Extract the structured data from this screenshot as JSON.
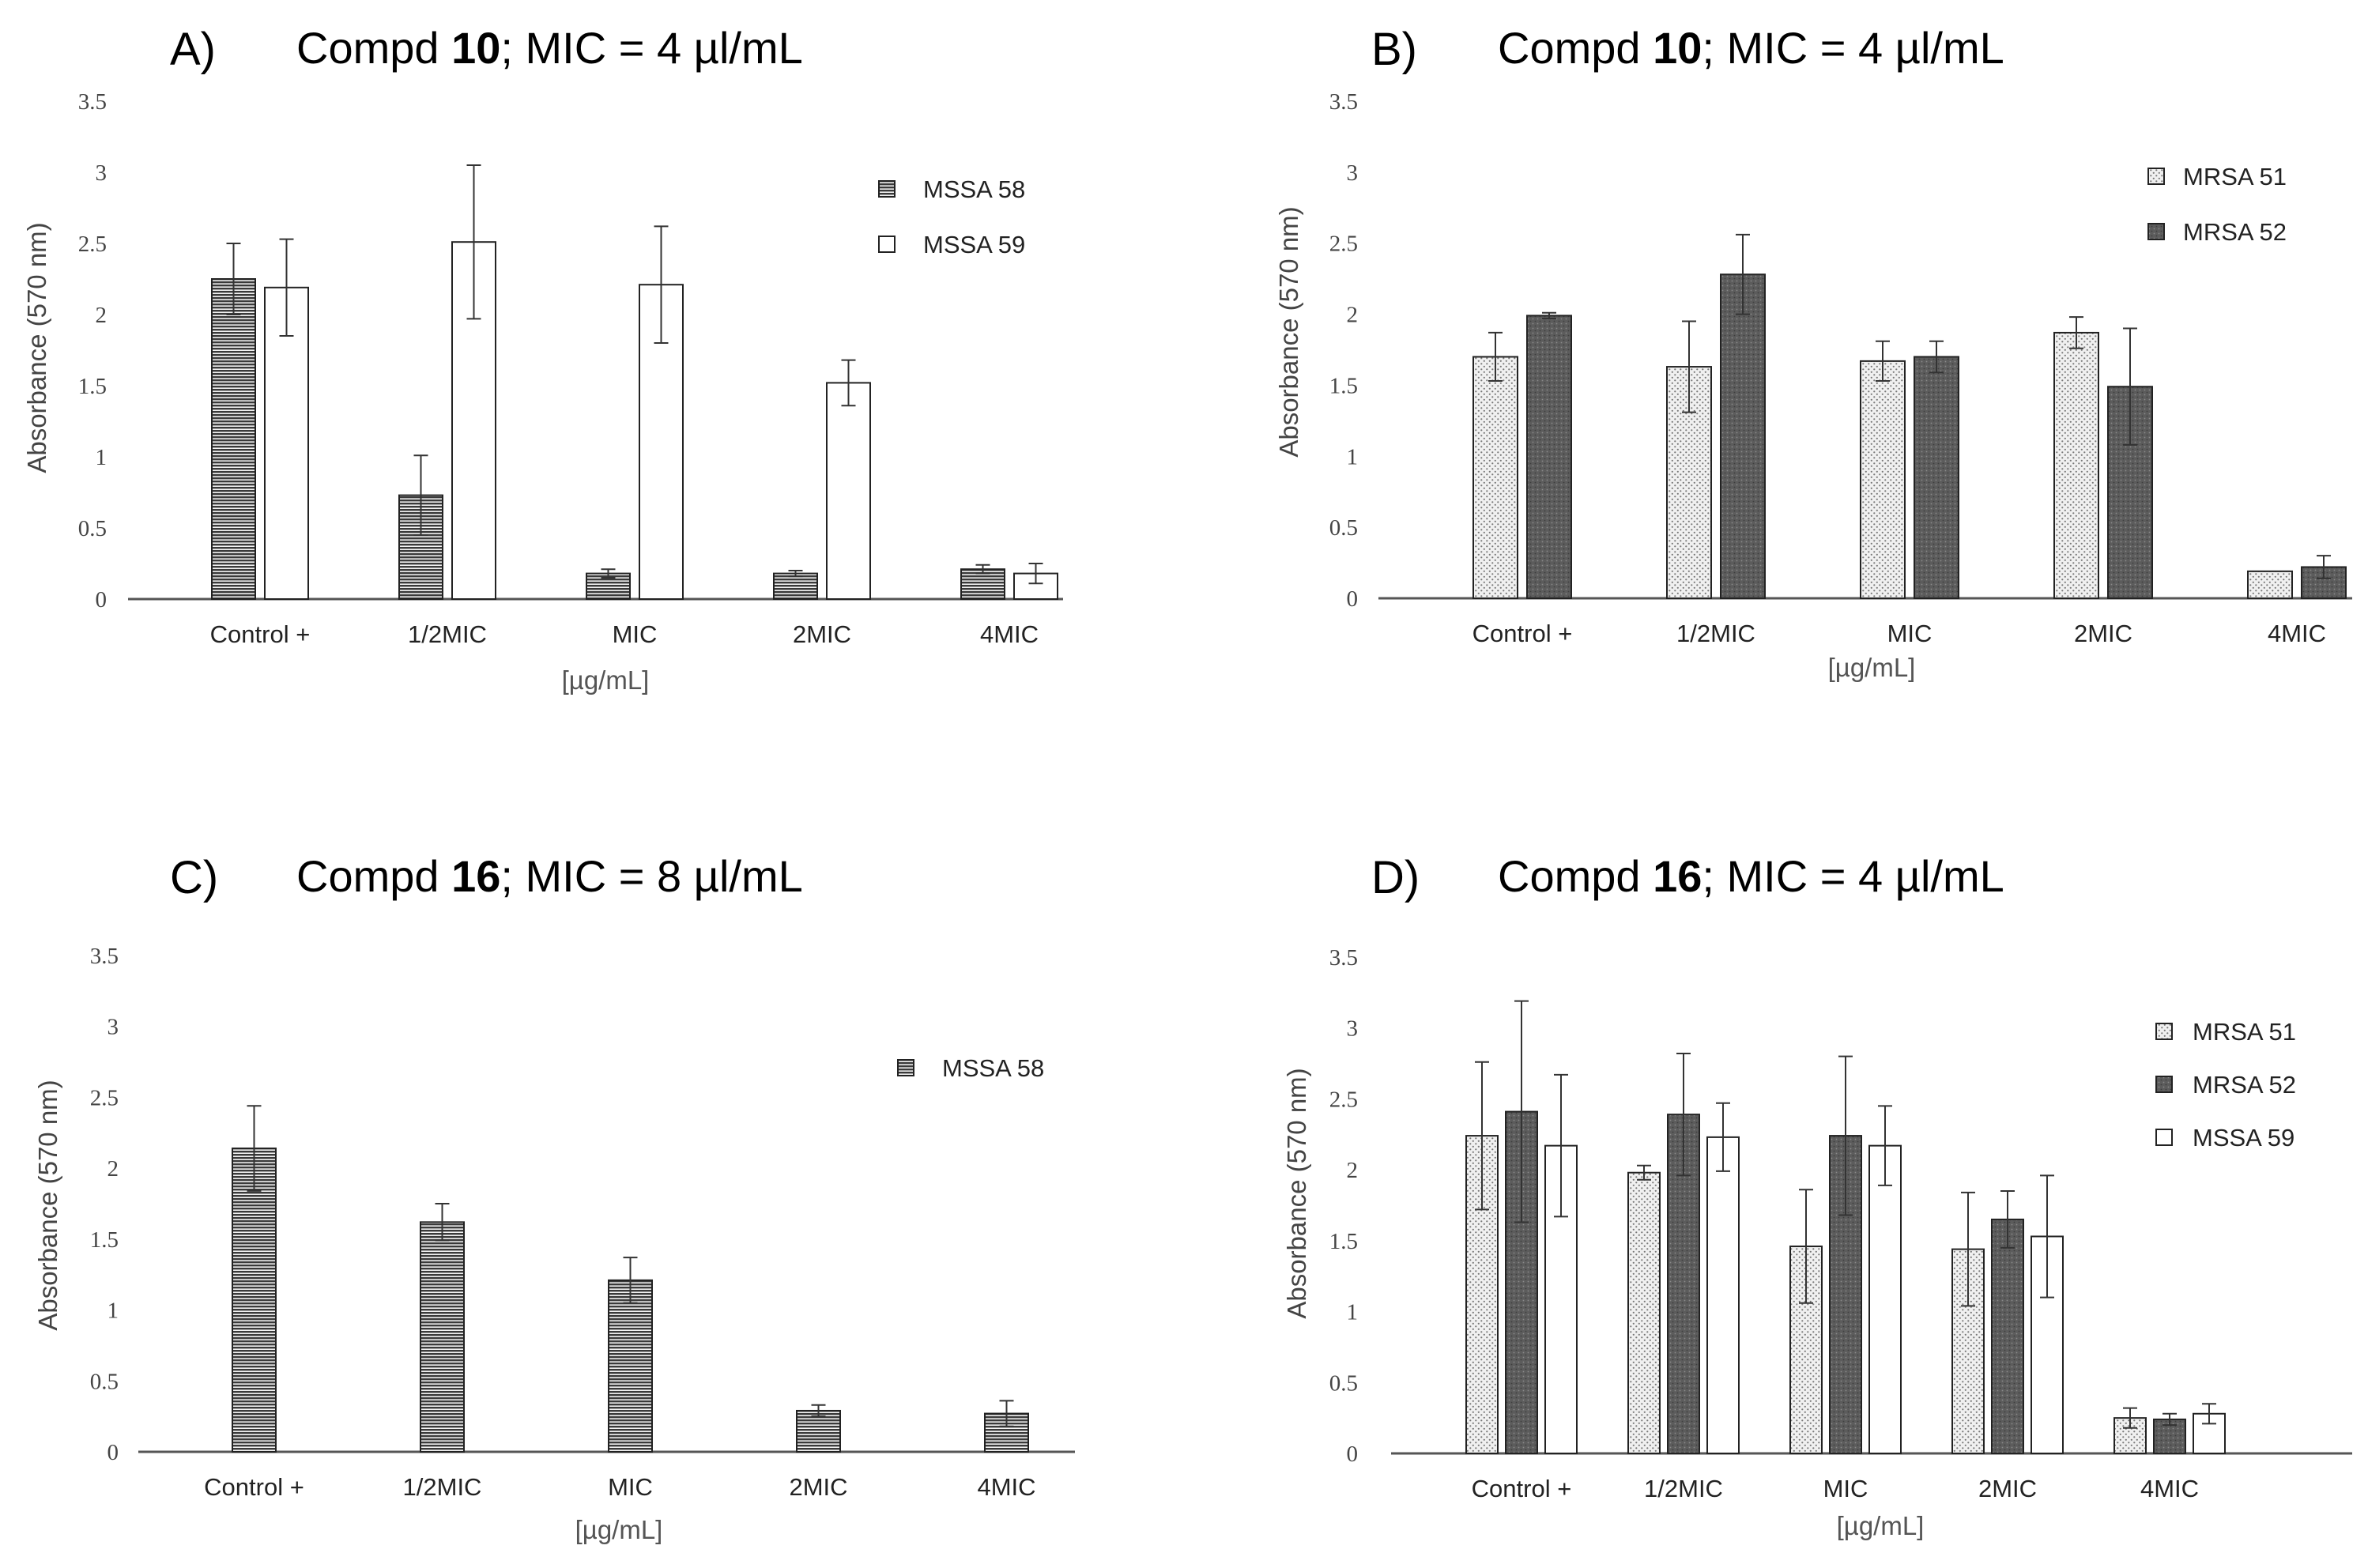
{
  "panels": [
    {
      "letter": "A)",
      "title_prefix": "Compd ",
      "title_compound": "10",
      "title_suffix": ";  MIC = 4 µl/mL",
      "ylabel": "Absorbance (570 nm)",
      "xunit": "[µg/mL]"
    },
    {
      "letter": "B)",
      "title_prefix": "Compd ",
      "title_compound": "10",
      "title_suffix": ";  MIC = 4 µl/mL",
      "ylabel": "Absorbance (570 nm)",
      "xunit": "[µg/mL]"
    },
    {
      "letter": "C)",
      "title_prefix": "Compd ",
      "title_compound": "16",
      "title_suffix": ";  MIC = 8 µl/mL",
      "ylabel": "Absorbance  (570 nm)",
      "xunit": "[µg/mL]"
    },
    {
      "letter": "D)",
      "title_prefix": "Compd ",
      "title_compound": "16",
      "title_suffix": ";  MIC = 4 µl/mL",
      "ylabel": "Absorbance  (570 nm)",
      "xunit": "[µg/mL]"
    }
  ],
  "chart_data": [
    {
      "type": "bar",
      "title": "Compd 10;  MIC = 4 µl/mL",
      "ylabel": "Absorbance (570 nm)",
      "xlabel": "[µg/mL]",
      "ylim": [
        0,
        3.5
      ],
      "yticks": [
        "0",
        "0.5",
        "1",
        "1.5",
        "2",
        "2.5",
        "3",
        "3.5"
      ],
      "categories": [
        "Control +",
        "1/2MIC",
        "MIC",
        "2MIC",
        "4MIC"
      ],
      "legend_position": "top-right",
      "series": [
        {
          "name": "MSSA 58",
          "pattern": "hstripe",
          "values": [
            2.25,
            0.73,
            0.18,
            0.18,
            0.21
          ],
          "errors": [
            0.25,
            0.28,
            0.03,
            0.02,
            0.03
          ]
        },
        {
          "name": "MSSA 59",
          "pattern": "white",
          "values": [
            2.19,
            2.51,
            2.21,
            1.52,
            0.18
          ],
          "errors": [
            0.34,
            0.54,
            0.41,
            0.16,
            0.07
          ]
        }
      ]
    },
    {
      "type": "bar",
      "title": "Compd 10;  MIC = 4 µl/mL",
      "ylabel": "Absorbance (570 nm)",
      "xlabel": "[µg/mL]",
      "ylim": [
        0,
        3.5
      ],
      "yticks": [
        "0",
        "0.5",
        "1",
        "1.5",
        "2",
        "2.5",
        "3",
        "3.5"
      ],
      "categories": [
        "Control +",
        "1/2MIC",
        "MIC",
        "2MIC",
        "4MIC"
      ],
      "legend_position": "top-right",
      "series": [
        {
          "name": "MRSA 51",
          "pattern": "dots",
          "values": [
            1.7,
            1.63,
            1.67,
            1.87,
            0.19
          ],
          "errors": [
            0.17,
            0.32,
            0.14,
            0.11,
            0.0
          ]
        },
        {
          "name": "MRSA 52",
          "pattern": "dark",
          "values": [
            1.99,
            2.28,
            1.7,
            1.49,
            0.22
          ],
          "errors": [
            0.02,
            0.28,
            0.11,
            0.41,
            0.08
          ]
        }
      ]
    },
    {
      "type": "bar",
      "title": "Compd 16;  MIC = 8 µl/mL",
      "ylabel": "Absorbance  (570 nm)",
      "xlabel": "[µg/mL]",
      "ylim": [
        0,
        3.5
      ],
      "yticks": [
        "0",
        "0.5",
        "1",
        "1.5",
        "2",
        "2.5",
        "3",
        "3.5"
      ],
      "categories": [
        "Control +",
        "1/2MIC",
        "MIC",
        "2MIC",
        "4MIC"
      ],
      "legend_position": "top-right",
      "series": [
        {
          "name": "MSSA 58",
          "pattern": "hstripe",
          "values": [
            2.14,
            1.62,
            1.21,
            0.29,
            0.27
          ],
          "errors": [
            0.3,
            0.13,
            0.16,
            0.04,
            0.09
          ]
        }
      ]
    },
    {
      "type": "bar",
      "title": "Compd 16;  MIC = 4 µl/mL",
      "ylabel": "Absorbance  (570 nm)",
      "xlabel": "[µg/mL]",
      "ylim": [
        0,
        3.5
      ],
      "yticks": [
        "0",
        "0.5",
        "1",
        "1.5",
        "2",
        "2.5",
        "3",
        "3.5"
      ],
      "categories": [
        "Control +",
        "1/2MIC",
        "MIC",
        "2MIC",
        "4MIC"
      ],
      "legend_position": "top-right",
      "series": [
        {
          "name": "MRSA 51",
          "pattern": "dots",
          "values": [
            2.24,
            1.98,
            1.46,
            1.44,
            0.25
          ],
          "errors": [
            0.52,
            0.05,
            0.4,
            0.4,
            0.07
          ]
        },
        {
          "name": "MRSA 52",
          "pattern": "dark",
          "values": [
            2.41,
            2.39,
            2.24,
            1.65,
            0.24
          ],
          "errors": [
            0.78,
            0.43,
            0.56,
            0.2,
            0.04
          ]
        },
        {
          "name": "MSSA 59",
          "pattern": "white",
          "values": [
            2.17,
            2.23,
            2.17,
            1.53,
            0.28
          ],
          "errors": [
            0.5,
            0.24,
            0.28,
            0.43,
            0.07
          ]
        }
      ]
    }
  ]
}
